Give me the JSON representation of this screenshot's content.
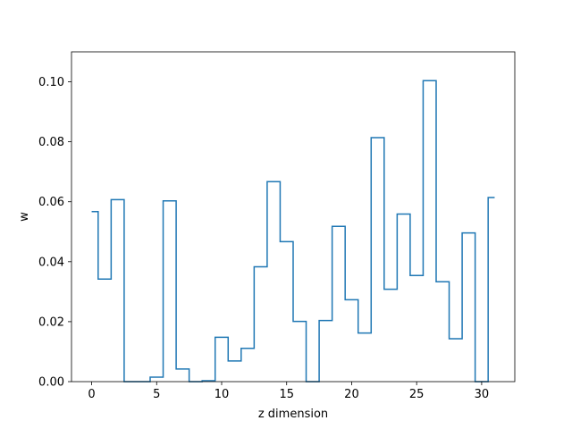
{
  "chart_data": {
    "type": "line",
    "step": "mid",
    "xlabel": "z dimension",
    "ylabel": "w",
    "xlim": [
      -1.55,
      32.55
    ],
    "ylim": [
      0.0,
      0.11
    ],
    "xticks": [
      0,
      5,
      10,
      15,
      20,
      25,
      30
    ],
    "xtick_labels": [
      "0",
      "5",
      "10",
      "15",
      "20",
      "25",
      "30"
    ],
    "yticks": [
      0.0,
      0.02,
      0.04,
      0.06,
      0.08,
      0.1
    ],
    "ytick_labels": [
      "0.00",
      "0.02",
      "0.04",
      "0.06",
      "0.08",
      "0.10"
    ],
    "grid": false,
    "line_color": "#1f77b4",
    "series": [
      {
        "x": [
          0,
          1,
          2,
          3,
          4,
          5,
          6,
          7,
          8,
          9,
          10,
          11,
          12,
          13,
          14,
          15,
          16,
          17,
          18,
          19,
          20,
          21,
          22,
          23,
          24,
          25,
          26,
          27,
          28,
          29,
          30,
          31
        ],
        "values": [
          0.0567,
          0.0342,
          0.0607,
          0.0,
          0.0,
          0.0015,
          0.0603,
          0.0042,
          0.0,
          0.0003,
          0.0148,
          0.0069,
          0.0111,
          0.0383,
          0.0667,
          0.0467,
          0.0201,
          0.0,
          0.0204,
          0.0518,
          0.0273,
          0.0162,
          0.0814,
          0.0308,
          0.0559,
          0.0354,
          0.1004,
          0.0333,
          0.0143,
          0.0496,
          0.0,
          0.0614
        ]
      }
    ]
  }
}
